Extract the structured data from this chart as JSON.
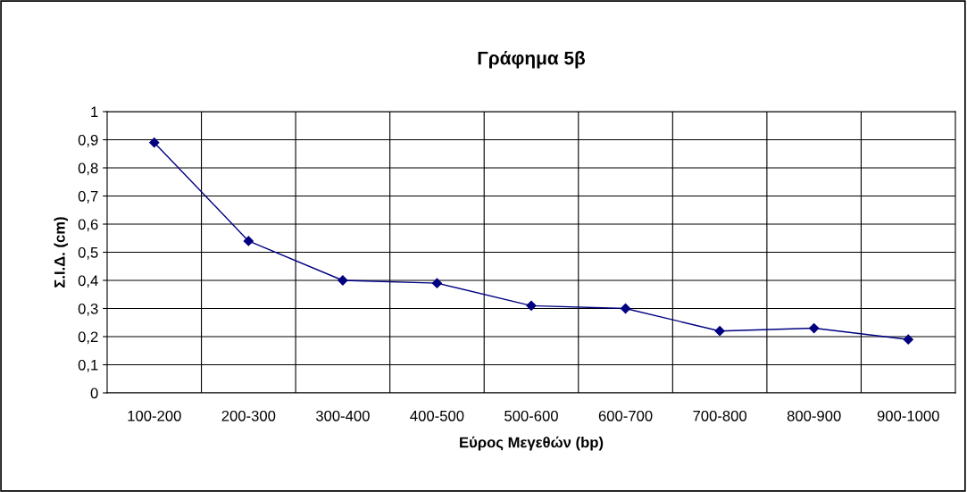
{
  "chart_data": {
    "type": "line",
    "title": "Γράφημα 5β",
    "xlabel": "Εύρος Μεγεθών (bp)",
    "ylabel": "Σ.Ι.Δ. (cm)",
    "categories": [
      "100-200",
      "200-300",
      "300-400",
      "400-500",
      "500-600",
      "600-700",
      "700-800",
      "800-900",
      "900-1000"
    ],
    "series": [
      {
        "color": "#000080",
        "values": [
          0.89,
          0.54,
          0.4,
          0.39,
          0.31,
          0.3,
          0.22,
          0.23,
          0.19
        ]
      }
    ],
    "ylim": [
      0,
      1
    ],
    "yticks": [
      0,
      {
        "value": 0.1,
        "label": "0,1"
      },
      {
        "value": 0.2,
        "label": "0,2"
      },
      {
        "value": 0.3,
        "label": "0,3"
      },
      {
        "value": 0.4,
        "label": "0,4"
      },
      {
        "value": 0.5,
        "label": "0,5"
      },
      {
        "value": 0.6,
        "label": "0,6"
      },
      {
        "value": 0.7,
        "label": "0,7"
      },
      {
        "value": 0.8,
        "label": "0,8"
      },
      {
        "value": 0.9,
        "label": "0,9"
      },
      1
    ],
    "grid": true,
    "marker": "diamond",
    "line_style": "solid",
    "legend": false
  }
}
